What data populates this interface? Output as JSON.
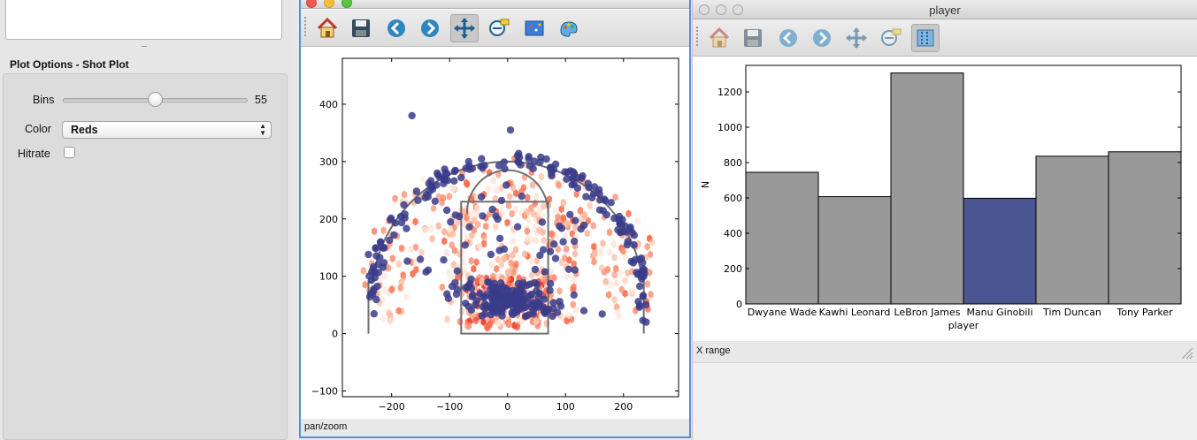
{
  "options_panel": {
    "section_title": "Plot Options - Shot Plot",
    "bins_label": "Bins",
    "bins_value": "55",
    "bins_slider_fraction": 0.5,
    "color_label": "Color",
    "color_value": "Reds",
    "hitrate_label": "Hitrate",
    "hitrate_checked": false
  },
  "shot_window": {
    "toolbar": {
      "icons": [
        "home-icon",
        "save-icon",
        "back-arrow-icon",
        "forward-arrow-icon",
        "pan-move-icon",
        "zoom-rect-icon",
        "subplots-config-icon",
        "edit-axes-icon"
      ],
      "active": "pan-move-icon"
    },
    "status": "pan/zoom"
  },
  "player_window": {
    "title": "player",
    "toolbar": {
      "icons": [
        "home-icon",
        "save-icon",
        "back-arrow-icon",
        "forward-arrow-icon",
        "pan-move-icon",
        "zoom-rect-icon",
        "subplots-config-icon"
      ],
      "active": "subplots-config-icon"
    },
    "status": "X range"
  },
  "colors": {
    "selection_blue": "#3a3c8a",
    "bar_gray": "#999999",
    "bar_highlight": "#4b5592",
    "court_gray": "#707070",
    "hex_red": "#f2673f"
  },
  "chart_data": [
    {
      "type": "scatter",
      "title": "",
      "xlabel": "",
      "ylabel": "",
      "xlim": [
        -285,
        295
      ],
      "ylim": [
        -110,
        480
      ],
      "xticks": [
        -200,
        -100,
        0,
        100,
        200
      ],
      "yticks": [
        -100,
        0,
        100,
        200,
        300,
        400
      ],
      "xtick_labels": [
        "−200",
        "−100",
        "0",
        "100",
        "200"
      ],
      "ytick_labels": [
        "−100",
        "0",
        "100",
        "200",
        "300",
        "400"
      ],
      "background": "hexbin density of shots, Reds colormap",
      "points_color": "#3a3c8a",
      "points_description": "selected player's shots (Manu Ginobili) overlaid on court outline",
      "highlight_points": [
        [
          -165,
          380
        ],
        [
          5,
          355
        ],
        [
          0,
          50
        ],
        [
          -10,
          60
        ],
        [
          10,
          45
        ],
        [
          -240,
          138
        ],
        [
          235,
          100
        ]
      ]
    },
    {
      "type": "bar",
      "title": "",
      "xlabel": "player",
      "ylabel": "N",
      "categories": [
        "Dwyane Wade",
        "Kawhi Leonard",
        "LeBron James",
        "Manu Ginobili",
        "Tim Duncan",
        "Tony Parker"
      ],
      "values": [
        745,
        607,
        1307,
        598,
        836,
        861
      ],
      "selected": "Manu Ginobili",
      "ylim": [
        0,
        1350
      ],
      "yticks": [
        0,
        200,
        400,
        600,
        800,
        1000,
        1200
      ],
      "grid": false
    }
  ]
}
